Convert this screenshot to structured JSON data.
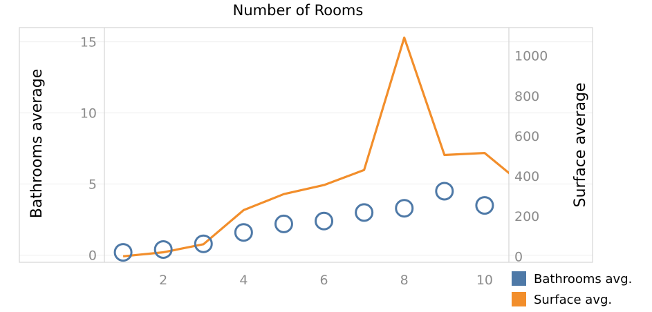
{
  "chart_data": {
    "type": "line",
    "title": "Number of Rooms",
    "ylabel": "Bathrooms average",
    "y2label": "Surface average",
    "x": [
      1,
      2,
      3,
      4,
      5,
      6,
      7,
      8,
      9,
      10,
      11
    ],
    "xlim": [
      0,
      11
    ],
    "ylim": [
      -0.5,
      16
    ],
    "y2lim": [
      -30,
      1140
    ],
    "xticks": [
      "2",
      "4",
      "6",
      "8",
      "10"
    ],
    "yticks": [
      "0",
      "5",
      "10",
      "15"
    ],
    "y2ticks": [
      "0",
      "200",
      "400",
      "600",
      "800",
      "1000"
    ],
    "grid": true,
    "legend_position": "bottom-right",
    "series": [
      {
        "name": "Bathrooms avg.",
        "kind": "scatter",
        "axis": "left",
        "marker": "hollow-circle",
        "color": "#4e79a7",
        "x": [
          1,
          2,
          3,
          4,
          5,
          6,
          7,
          8,
          9,
          10
        ],
        "values": [
          0.2,
          0.4,
          0.8,
          1.6,
          2.2,
          2.4,
          3.0,
          3.3,
          4.5,
          3.5
        ]
      },
      {
        "name": "Surface avg.",
        "kind": "line",
        "axis": "right",
        "color": "#f28e2b",
        "x": [
          1,
          2,
          3,
          4,
          5,
          6,
          7,
          8,
          9,
          10,
          11
        ],
        "values": [
          0,
          20,
          60,
          230,
          310,
          355,
          430,
          1090,
          505,
          515,
          350
        ]
      }
    ]
  }
}
